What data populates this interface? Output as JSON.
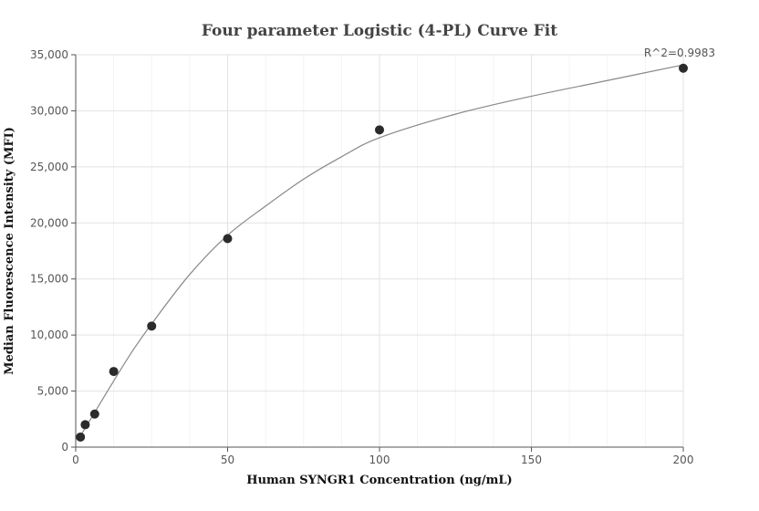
{
  "chart_data": {
    "type": "scatter",
    "title": "Four parameter Logistic (4-PL) Curve Fit",
    "xlabel": "Human SYNGR1 Concentration (ng/mL)",
    "ylabel": "Median Fluorescence Intensity (MFI)",
    "xlim": [
      0,
      200
    ],
    "ylim": [
      0,
      35000
    ],
    "x_ticks": [
      0,
      50,
      100,
      150,
      200
    ],
    "y_ticks": [
      0,
      5000,
      10000,
      15000,
      20000,
      25000,
      30000,
      35000
    ],
    "x_tick_labels": [
      "0",
      "50",
      "100",
      "150",
      "200"
    ],
    "y_tick_labels": [
      "0",
      "5,000",
      "10,000",
      "15,000",
      "20,000",
      "25,000",
      "30,000",
      "35,000"
    ],
    "grid": true,
    "series": [
      {
        "points": [
          {
            "x": 1.5625,
            "y": 900
          },
          {
            "x": 3.125,
            "y": 2000
          },
          {
            "x": 6.25,
            "y": 2950
          },
          {
            "x": 12.5,
            "y": 6750
          },
          {
            "x": 25,
            "y": 10800
          },
          {
            "x": 50,
            "y": 18600
          },
          {
            "x": 100,
            "y": 28300
          },
          {
            "x": 200,
            "y": 33800
          }
        ],
        "color": "#2b2b2b"
      }
    ],
    "fit_curve": {
      "model": "4PL",
      "color": "#888888",
      "points": [
        {
          "x": 1.5625,
          "y": 1000
        },
        {
          "x": 3.125,
          "y": 1700
        },
        {
          "x": 6.25,
          "y": 3100
        },
        {
          "x": 12.5,
          "y": 5900
        },
        {
          "x": 18.75,
          "y": 8600
        },
        {
          "x": 25,
          "y": 11000
        },
        {
          "x": 37.5,
          "y": 15400
        },
        {
          "x": 50,
          "y": 18900
        },
        {
          "x": 62.5,
          "y": 21500
        },
        {
          "x": 75,
          "y": 23900
        },
        {
          "x": 87.5,
          "y": 25900
        },
        {
          "x": 100,
          "y": 27600
        },
        {
          "x": 125,
          "y": 29700
        },
        {
          "x": 150,
          "y": 31300
        },
        {
          "x": 175,
          "y": 32700
        },
        {
          "x": 200,
          "y": 34100
        }
      ]
    },
    "annotation": "R^2=0.9983"
  }
}
